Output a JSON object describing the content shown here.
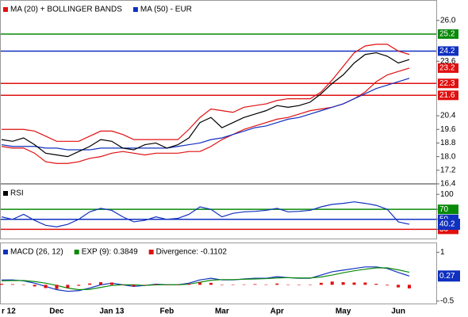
{
  "chart_data": [
    {
      "type": "line",
      "series": [
        {
          "name": "MA (20) + BOLLINGER BANDS",
          "color": "#e01010",
          "values": [
            19.6,
            19.6,
            19.6,
            19.5,
            19.2,
            18.9,
            18.9,
            18.9,
            19.2,
            19.5,
            19.5,
            19.3,
            19.0,
            19.0,
            19.0,
            19.0,
            19.0,
            19.6,
            20.3,
            20.8,
            20.7,
            20.6,
            20.9,
            21.0,
            21.1,
            21.3,
            21.4,
            21.4,
            21.4,
            21.8,
            22.5,
            23.3,
            24.1,
            24.5,
            24.6,
            24.6,
            24.2,
            24.0
          ]
        },
        {
          "color": "#e01010",
          "values": [
            18.6,
            18.5,
            18.5,
            18.2,
            17.7,
            17.6,
            17.6,
            17.7,
            17.9,
            18.0,
            18.2,
            18.3,
            18.2,
            18.1,
            18.2,
            18.2,
            18.2,
            18.3,
            18.3,
            18.6,
            19.0,
            19.3,
            19.6,
            19.8,
            20.0,
            20.2,
            20.3,
            20.5,
            20.7,
            20.8,
            20.9,
            21.1,
            21.4,
            21.8,
            22.4,
            22.8,
            23.0,
            23.2
          ]
        },
        {
          "name": "MA (50) - EUR",
          "color": "#1030c0",
          "values": [
            18.7,
            18.6,
            18.6,
            18.6,
            18.5,
            18.5,
            18.4,
            18.4,
            18.4,
            18.5,
            18.5,
            18.5,
            18.5,
            18.5,
            18.5,
            18.5,
            18.6,
            18.7,
            18.8,
            19.0,
            19.1,
            19.3,
            19.5,
            19.7,
            19.8,
            20.0,
            20.2,
            20.3,
            20.5,
            20.7,
            20.9,
            21.1,
            21.4,
            21.7,
            22.0,
            22.2,
            22.4,
            22.6
          ]
        },
        {
          "color": "#000000",
          "values": [
            19.0,
            18.9,
            19.1,
            18.7,
            18.2,
            18.1,
            18.0,
            18.3,
            18.6,
            19.0,
            18.9,
            18.5,
            18.4,
            18.7,
            18.8,
            18.5,
            18.7,
            19.1,
            20.0,
            20.3,
            19.7,
            20.0,
            20.3,
            20.5,
            20.7,
            21.0,
            20.9,
            21.0,
            21.2,
            21.7,
            22.3,
            22.8,
            23.5,
            24.0,
            24.1,
            23.9,
            23.5,
            23.7
          ]
        }
      ],
      "ylim": [
        16.4,
        27.2
      ],
      "yticks": [
        {
          "value": 26,
          "label": "26.0"
        },
        23.6,
        20.4,
        19.6,
        18.8,
        {
          "value": 18,
          "label": "18.0"
        },
        17.2,
        16.4
      ],
      "levels": [
        {
          "value": 25.2,
          "color": "#0a8a0a"
        },
        {
          "value": 24.2,
          "color": "#1030c0"
        },
        {
          "value": 22.3,
          "color": "#e01010"
        },
        {
          "value": 21.6,
          "color": "#e01010"
        }
      ],
      "last_value": 23.2,
      "last_color": "#e01010"
    },
    {
      "type": "line",
      "series": [
        {
          "name": "RSI",
          "color": "#1030c0",
          "legend_color": "#000000",
          "values": [
            55,
            50,
            60,
            48,
            38,
            35,
            40,
            50,
            65,
            72,
            68,
            55,
            45,
            48,
            55,
            50,
            52,
            60,
            75,
            70,
            55,
            62,
            65,
            66,
            68,
            72,
            65,
            66,
            68,
            75,
            80,
            82,
            85,
            82,
            78,
            70,
            45,
            40.2
          ]
        }
      ],
      "ylim": [
        10,
        121
      ],
      "yticks": [
        100,
        70,
        50,
        30
      ],
      "levels": [
        {
          "value": 70,
          "color": "#0a8a0a"
        },
        {
          "value": 50,
          "color": "#1030c0"
        },
        {
          "value": 30,
          "color": "#e01010"
        }
      ],
      "boxed_series": 0
    },
    {
      "type": "line",
      "categories": [
        "r 12",
        null,
        null,
        null,
        null,
        "Dec",
        null,
        null,
        null,
        null,
        "Jan 13",
        null,
        null,
        null,
        null,
        "Feb",
        null,
        null,
        null,
        null,
        "Mar",
        null,
        null,
        null,
        null,
        "Apr",
        null,
        null,
        null,
        null,
        null,
        "May",
        null,
        null,
        null,
        null,
        "Jun",
        null
      ],
      "series": [
        {
          "name": "MACD (26, 12)",
          "color": "#1030c0",
          "values": [
            0.15,
            0.15,
            0.12,
            0.05,
            -0.05,
            -0.15,
            -0.2,
            -0.18,
            -0.1,
            0.0,
            0.05,
            0.0,
            -0.05,
            -0.02,
            0.02,
            0.0,
            0.0,
            0.05,
            0.15,
            0.2,
            0.15,
            0.15,
            0.18,
            0.2,
            0.2,
            0.25,
            0.22,
            0.2,
            0.2,
            0.3,
            0.4,
            0.45,
            0.5,
            0.55,
            0.55,
            0.5,
            0.38,
            0.27
          ]
        },
        {
          "name": "EXP (9): 0.3849",
          "color": "#0a8a0a",
          "values": [
            0.12,
            0.13,
            0.13,
            0.1,
            0.05,
            -0.02,
            -0.1,
            -0.15,
            -0.14,
            -0.08,
            -0.02,
            0.0,
            0.0,
            -0.02,
            0.0,
            0.0,
            0.0,
            0.02,
            0.08,
            0.14,
            0.16,
            0.16,
            0.17,
            0.18,
            0.19,
            0.21,
            0.22,
            0.21,
            0.21,
            0.24,
            0.3,
            0.37,
            0.43,
            0.48,
            0.52,
            0.52,
            0.46,
            0.3849
          ]
        },
        {
          "name": "Divergence: -0.1102",
          "color": "#e01010",
          "kind": "bar",
          "values": [
            0.03,
            0.02,
            -0.01,
            -0.05,
            -0.1,
            -0.13,
            -0.1,
            -0.03,
            0.04,
            0.08,
            0.07,
            0.0,
            -0.05,
            0.0,
            0.02,
            0.0,
            0.0,
            0.03,
            0.07,
            0.06,
            -0.01,
            -0.01,
            0.01,
            0.02,
            0.01,
            0.04,
            0.0,
            -0.01,
            -0.01,
            0.06,
            0.1,
            0.08,
            0.07,
            0.07,
            0.03,
            -0.02,
            -0.08,
            -0.1102
          ]
        }
      ],
      "ylim": [
        -0.6,
        1.3
      ],
      "yticks": [
        1,
        -0.5
      ],
      "boxed_series": 0
    }
  ]
}
